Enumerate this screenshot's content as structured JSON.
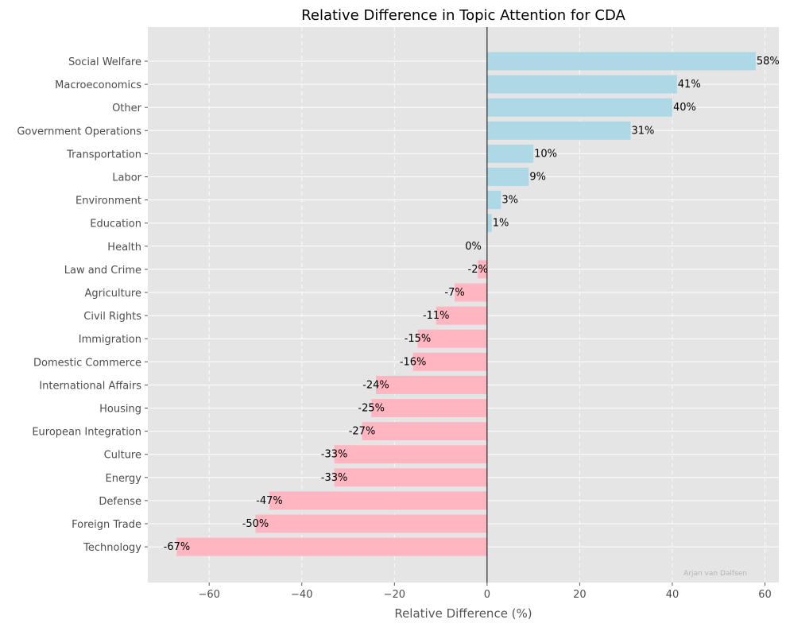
{
  "chart_data": {
    "type": "bar",
    "orientation": "horizontal",
    "title": "Relative Difference in Topic Attention for CDA",
    "xlabel": "Relative Difference (%)",
    "ylabel": "",
    "xlim": [
      -73.25,
      63.0
    ],
    "xticks": [
      -60,
      -40,
      -20,
      0,
      20,
      40,
      60
    ],
    "xtick_labels": [
      "−60",
      "−40",
      "−20",
      "0",
      "20",
      "40",
      "60"
    ],
    "grid": true,
    "watermark": "Arjan van Dalfsen",
    "colors": {
      "positive": "#add8e6",
      "negative": "#ffb6c1",
      "background": "#e5e5e5",
      "zero_line": "#000000"
    },
    "categories": [
      "Social Welfare",
      "Macroeconomics",
      "Other",
      "Government Operations",
      "Transportation",
      "Labor",
      "Environment",
      "Education",
      "Health",
      "Law and Crime",
      "Agriculture",
      "Civil Rights",
      "Immigration",
      "Domestic Commerce",
      "International Affairs",
      "Housing",
      "European Integration",
      "Culture",
      "Energy",
      "Defense",
      "Foreign Trade",
      "Technology"
    ],
    "values": [
      58,
      41,
      40,
      31,
      10,
      9,
      3,
      1,
      0,
      -2,
      -7,
      -11,
      -15,
      -16,
      -24,
      -25,
      -27,
      -33,
      -33,
      -47,
      -50,
      -67
    ],
    "value_labels": [
      "58%",
      "41%",
      "40%",
      "31%",
      "10%",
      "9%",
      "3%",
      "1%",
      "0%",
      "-2%",
      "-7%",
      "-11%",
      "-15%",
      "-16%",
      "-24%",
      "-25%",
      "-27%",
      "-33%",
      "-33%",
      "-47%",
      "-50%",
      "-67%"
    ]
  }
}
